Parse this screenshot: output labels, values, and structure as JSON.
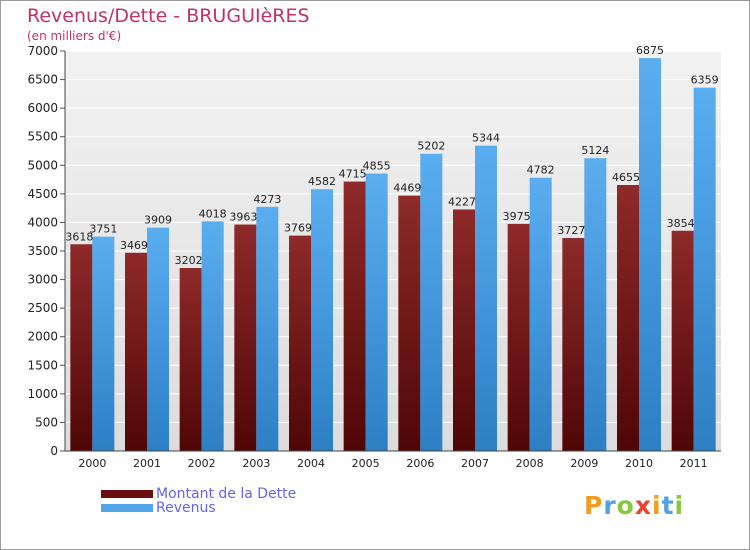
{
  "chart_data": {
    "type": "bar",
    "title": "Revenus/Dette - BRUGUIèRES",
    "subtitle": "(en milliers d'€)",
    "xlabel": "",
    "ylabel": "",
    "ylim": [
      0,
      7000
    ],
    "yticks": [
      0,
      500,
      1000,
      1500,
      2000,
      2500,
      3000,
      3500,
      4000,
      4500,
      5000,
      5500,
      6000,
      6500,
      7000
    ],
    "grid": true,
    "categories": [
      "2000",
      "2001",
      "2002",
      "2003",
      "2004",
      "2005",
      "2006",
      "2007",
      "2008",
      "2009",
      "2010",
      "2011"
    ],
    "series": [
      {
        "name": "Montant de la Dette",
        "color": "#7a1a1a",
        "values": [
          3618,
          3469,
          3202,
          3963,
          3769,
          4715,
          4469,
          4227,
          3975,
          3727,
          4655,
          3854
        ]
      },
      {
        "name": "Revenus",
        "color": "#4fa5e8",
        "values": [
          3751,
          3909,
          4018,
          4273,
          4582,
          4855,
          5202,
          5344,
          4782,
          5124,
          6875,
          6359
        ]
      }
    ],
    "legend": "bottom-left"
  },
  "branding": {
    "logo_text": "Proxiti",
    "logo_colors": [
      "#f29b1e",
      "#4ea3e0",
      "#8cc63f",
      "#e8452c",
      "#f29b1e",
      "#4ea3e0",
      "#8cc63f"
    ]
  }
}
